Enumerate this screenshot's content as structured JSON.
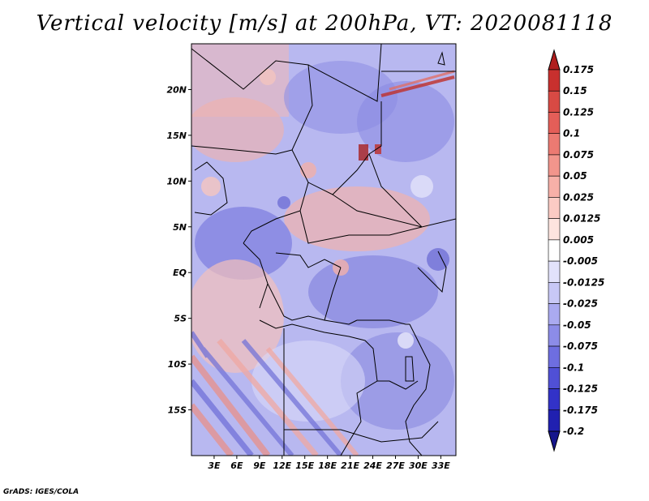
{
  "title": "Vertical velocity [m/s] at 200hPa, VT: 2020081118",
  "credit": "GrADS: IGES/COLA",
  "map": {
    "lon_range": [
      0,
      35
    ],
    "lat_range": [
      -20,
      25
    ],
    "x_ticks": [
      "3E",
      "6E",
      "9E",
      "12E",
      "15E",
      "18E",
      "21E",
      "24E",
      "27E",
      "30E",
      "33E"
    ],
    "y_ticks": [
      "20N",
      "15N",
      "10N",
      "5N",
      "EQ",
      "5S",
      "10S",
      "15S"
    ]
  },
  "colorbar": {
    "labels": [
      "0.175",
      "0.15",
      "0.125",
      "0.1",
      "0.075",
      "0.05",
      "0.025",
      "0.0125",
      "0.005",
      "-0.005",
      "-0.0125",
      "-0.025",
      "-0.05",
      "-0.075",
      "-0.1",
      "-0.125",
      "-0.175",
      "-0.2"
    ],
    "colors": [
      "#b01e1e",
      "#c8302e",
      "#d84a44",
      "#e45e58",
      "#ec7a72",
      "#f2958c",
      "#f7b0a8",
      "#fbcbc4",
      "#fde4df",
      "#ffffff",
      "#e2e2fb",
      "#c8c8f6",
      "#aaaaf0",
      "#8c8ce8",
      "#6e6ee0",
      "#5050d6",
      "#3232c8",
      "#2020b0",
      "#16168c"
    ]
  }
}
